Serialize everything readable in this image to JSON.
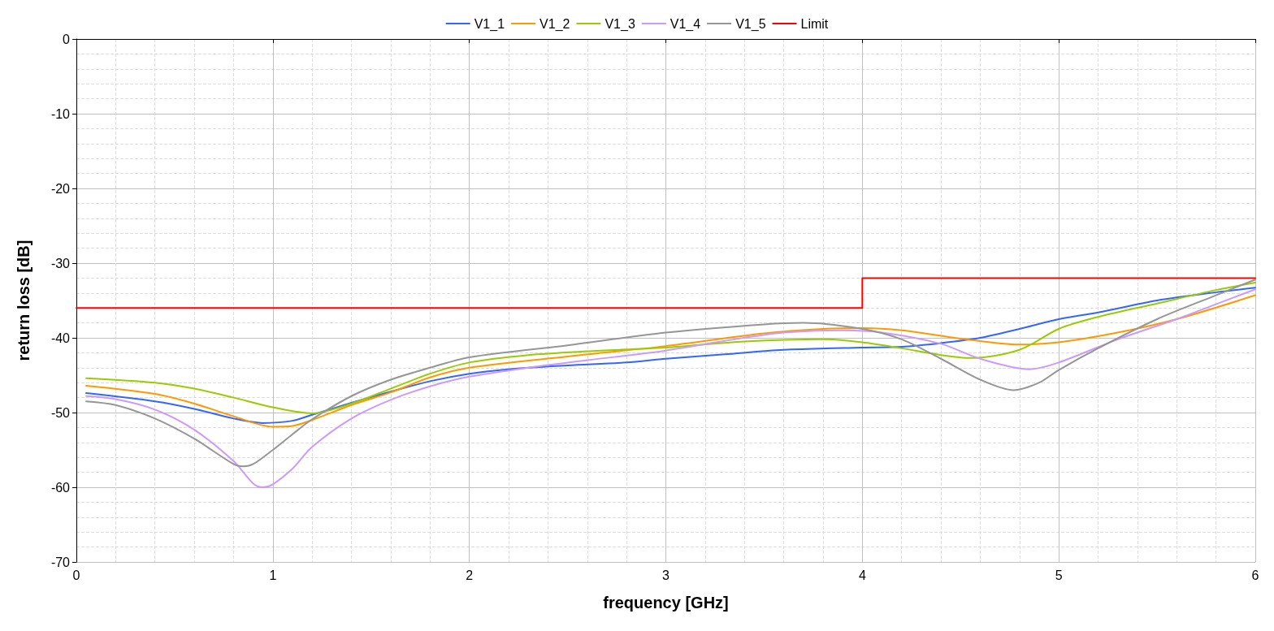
{
  "chart_data": {
    "type": "line",
    "xlabel": "frequency [GHz]",
    "ylabel": "return loss [dB]",
    "xlim": [
      0,
      6
    ],
    "xticks": [
      0,
      1,
      2,
      3,
      4,
      5,
      6
    ],
    "ylim": [
      -70,
      0
    ],
    "yticks": [
      -70,
      -60,
      -50,
      -40,
      -30,
      -20,
      -10,
      0
    ],
    "grid": true,
    "legend": "top",
    "marker": "none",
    "line_style": "solid",
    "series": [
      {
        "name": "V1_1",
        "color": "#3366ff",
        "x": [
          0.05,
          0.4,
          0.6,
          0.8,
          0.95,
          1.1,
          1.2,
          1.4,
          1.6,
          1.8,
          2.0,
          2.2,
          2.5,
          2.8,
          3.0,
          3.3,
          3.6,
          4.0,
          4.2,
          4.4,
          4.6,
          4.8,
          5.0,
          5.2,
          5.5,
          5.8,
          6.0
        ],
        "values": [
          -47.4,
          -48.5,
          -49.5,
          -50.8,
          -51.4,
          -51.1,
          -50.3,
          -48.7,
          -47.2,
          -45.8,
          -44.8,
          -44.2,
          -43.7,
          -43.3,
          -42.8,
          -42.2,
          -41.6,
          -41.3,
          -41.2,
          -40.7,
          -40.0,
          -38.8,
          -37.5,
          -36.6,
          -35.0,
          -33.9,
          -33.3
        ]
      },
      {
        "name": "V1_2",
        "color": "#ff9900",
        "x": [
          0.05,
          0.4,
          0.6,
          0.8,
          1.0,
          1.1,
          1.2,
          1.4,
          1.6,
          1.8,
          2.0,
          2.5,
          3.0,
          3.5,
          3.8,
          4.0,
          4.2,
          4.5,
          4.8,
          5.0,
          5.3,
          5.6,
          6.0
        ],
        "values": [
          -46.4,
          -47.5,
          -48.8,
          -50.5,
          -51.9,
          -51.8,
          -51.0,
          -49.0,
          -47.3,
          -45.3,
          -44.0,
          -42.5,
          -41.1,
          -39.4,
          -38.8,
          -38.7,
          -39.0,
          -40.1,
          -40.9,
          -40.6,
          -39.3,
          -37.5,
          -34.3
        ]
      },
      {
        "name": "V1_3",
        "color": "#99cc00",
        "x": [
          0.05,
          0.4,
          0.6,
          0.8,
          1.0,
          1.2,
          1.4,
          1.6,
          1.8,
          2.0,
          2.3,
          2.6,
          3.0,
          3.4,
          3.8,
          4.0,
          4.2,
          4.4,
          4.55,
          4.8,
          5.0,
          5.2,
          5.5,
          5.8,
          6.0
        ],
        "values": [
          -45.4,
          -46.0,
          -46.8,
          -48.0,
          -49.3,
          -50.1,
          -48.8,
          -46.8,
          -44.8,
          -43.3,
          -42.3,
          -41.8,
          -41.3,
          -40.5,
          -40.2,
          -40.6,
          -41.4,
          -42.3,
          -42.7,
          -41.6,
          -38.8,
          -37.2,
          -35.4,
          -33.6,
          -32.6
        ]
      },
      {
        "name": "V1_4",
        "color": "#cc99ff",
        "x": [
          0.05,
          0.2,
          0.4,
          0.6,
          0.8,
          0.9,
          0.95,
          1.0,
          1.1,
          1.2,
          1.4,
          1.6,
          1.8,
          2.0,
          2.3,
          2.6,
          3.0,
          3.3,
          3.6,
          3.9,
          4.1,
          4.4,
          4.6,
          4.85,
          5.0,
          5.3,
          5.6,
          5.8,
          6.0
        ],
        "values": [
          -47.8,
          -48.2,
          -49.6,
          -52.3,
          -56.5,
          -59.5,
          -60.0,
          -59.6,
          -57.5,
          -54.6,
          -50.8,
          -48.3,
          -46.5,
          -45.2,
          -44.0,
          -43.0,
          -41.7,
          -40.4,
          -39.3,
          -39.0,
          -39.3,
          -40.8,
          -42.8,
          -44.2,
          -43.3,
          -40.2,
          -37.5,
          -35.5,
          -33.5
        ]
      },
      {
        "name": "V1_5",
        "color": "#969696",
        "x": [
          0.05,
          0.2,
          0.4,
          0.6,
          0.8,
          0.85,
          0.9,
          1.0,
          1.1,
          1.2,
          1.4,
          1.6,
          1.8,
          2.0,
          2.5,
          3.0,
          3.5,
          3.7,
          4.0,
          4.2,
          4.4,
          4.6,
          4.77,
          4.9,
          5.0,
          5.2,
          5.5,
          5.8,
          6.0
        ],
        "values": [
          -48.5,
          -49.0,
          -50.8,
          -53.5,
          -56.9,
          -57.2,
          -56.9,
          -55.0,
          -52.9,
          -50.9,
          -47.8,
          -45.6,
          -44.0,
          -42.6,
          -41.0,
          -39.3,
          -38.2,
          -38.0,
          -38.8,
          -40.2,
          -42.8,
          -45.6,
          -47.0,
          -46.0,
          -44.3,
          -41.4,
          -37.5,
          -34.3,
          -32.2
        ]
      },
      {
        "name": "Limit",
        "color": "#ff0000",
        "x": [
          0,
          4,
          4,
          6
        ],
        "values": [
          -36,
          -36,
          -32,
          -32
        ]
      }
    ]
  }
}
